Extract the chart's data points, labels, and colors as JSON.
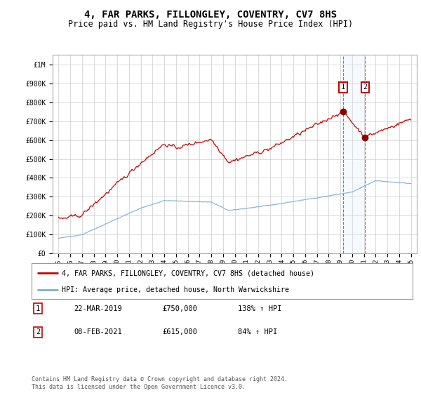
{
  "title": "4, FAR PARKS, FILLONGLEY, COVENTRY, CV7 8HS",
  "subtitle": "Price paid vs. HM Land Registry's House Price Index (HPI)",
  "ylim": [
    0,
    1050000
  ],
  "xlim_start": 1994.5,
  "xlim_end": 2025.5,
  "yticks": [
    0,
    100000,
    200000,
    300000,
    400000,
    500000,
    600000,
    700000,
    800000,
    900000,
    1000000
  ],
  "ytick_labels": [
    "£0",
    "£100K",
    "£200K",
    "£300K",
    "£400K",
    "£500K",
    "£600K",
    "£700K",
    "£800K",
    "£900K",
    "£1M"
  ],
  "xticks": [
    1995,
    1996,
    1997,
    1998,
    1999,
    2000,
    2001,
    2002,
    2003,
    2004,
    2005,
    2006,
    2007,
    2008,
    2009,
    2010,
    2011,
    2012,
    2013,
    2014,
    2015,
    2016,
    2017,
    2018,
    2019,
    2020,
    2021,
    2022,
    2023,
    2024,
    2025
  ],
  "red_line_color": "#cc0000",
  "blue_line_color": "#7aaedc",
  "marker1_x": 2019.22,
  "marker1_y": 750000,
  "marker2_x": 2021.1,
  "marker2_y": 615000,
  "marker1_date": "22-MAR-2019",
  "marker1_price": "£750,000",
  "marker1_hpi": "138% ↑ HPI",
  "marker2_date": "08-FEB-2021",
  "marker2_price": "£615,000",
  "marker2_hpi": "84% ↑ HPI",
  "legend_label_red": "4, FAR PARKS, FILLONGLEY, COVENTRY, CV7 8HS (detached house)",
  "legend_label_blue": "HPI: Average price, detached house, North Warwickshire",
  "footnote": "Contains HM Land Registry data © Crown copyright and database right 2024.\nThis data is licensed under the Open Government Licence v3.0.",
  "background_color": "#ffffff",
  "plot_bg_color": "#ffffff",
  "grid_color": "#cccccc",
  "shaded_region_color": "#ddeeff",
  "title_fontsize": 10,
  "subtitle_fontsize": 8.5,
  "noise_seed": 42
}
